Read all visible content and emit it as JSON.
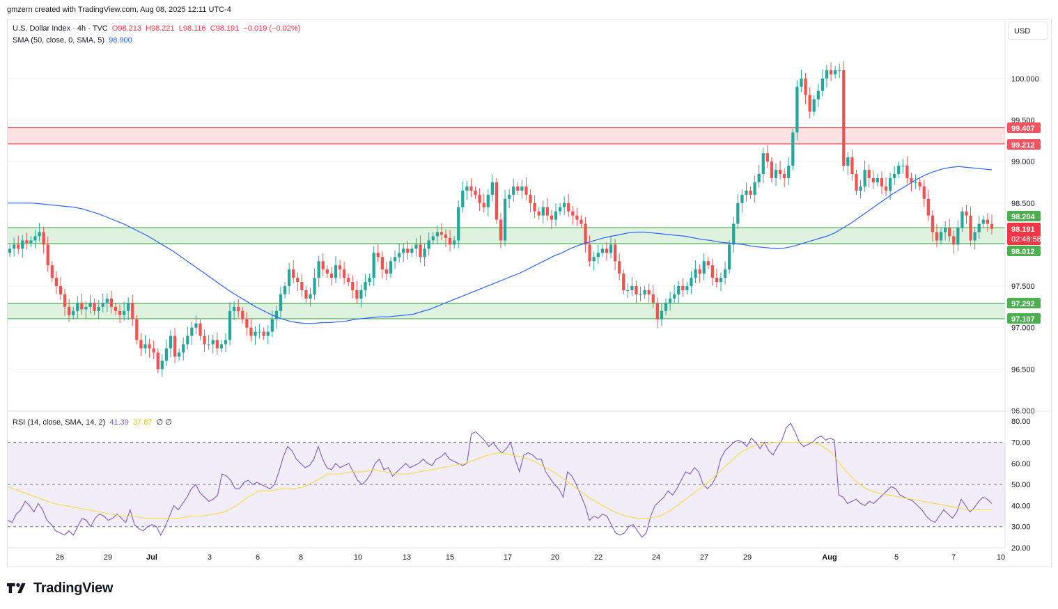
{
  "header": {
    "caption": "gmzern created with TradingView.com, Aug 08, 2025 12:11 UTC-4"
  },
  "legend": {
    "symbol": "U.S. Dollar Index · 4h · TVC",
    "open": "O98.213",
    "high": "H98.221",
    "low": "L98.116",
    "close": "C98.191",
    "change": "−0.019 (−0.02%)",
    "sma_label": "SMA (50, close, 0, SMA, 5)",
    "sma_value": "98.900",
    "rsi_label": "RSI (14, close, SMA, 14, 2)",
    "rsi_value": "41.39",
    "rsi_ma_value": "37.87",
    "rsi_extra": "∅ ∅"
  },
  "currency_button": "USD",
  "footer": {
    "brand": "TradingView"
  },
  "colors": {
    "up": "#26a69a",
    "down": "#ef5350",
    "sma": "#2962ff",
    "rsi": "#7e57c2",
    "rsi_ma": "#f5d949",
    "resistance": "#f23645",
    "support": "#4caf50"
  },
  "chart_data": [
    {
      "type": "candlestick",
      "title": "U.S. Dollar Index · 4h · TVC",
      "ylim": [
        96.0,
        100.4
      ],
      "y_ticks": [
        "100.000",
        "99.500",
        "99.000",
        "98.500",
        "97.500",
        "97.000",
        "96.500",
        "96.000"
      ],
      "x_ticks": [
        "26",
        "29",
        "Jul",
        "3",
        "6",
        "8",
        "10",
        "13",
        "15",
        "17",
        "20",
        "22",
        "24",
        "27",
        "29",
        "Aug",
        "5",
        "7",
        "10"
      ],
      "price_tags": [
        {
          "label": "99.407",
          "kind": "resistance"
        },
        {
          "label": "99.212",
          "kind": "resistance"
        },
        {
          "label": "98.204",
          "kind": "support"
        },
        {
          "label": "98.191",
          "kind": "last"
        },
        {
          "label": "02:48:58",
          "kind": "countdown"
        },
        {
          "label": "98.012",
          "kind": "support"
        },
        {
          "label": "97.292",
          "kind": "support"
        },
        {
          "label": "97.107",
          "kind": "support"
        }
      ],
      "zones": [
        {
          "from": 99.212,
          "to": 99.407,
          "kind": "resistance"
        },
        {
          "from": 98.012,
          "to": 98.204,
          "kind": "support"
        },
        {
          "from": 97.107,
          "to": 97.292,
          "kind": "support"
        }
      ],
      "close": [
        97.95,
        98.0,
        97.95,
        98.05,
        98.02,
        98.05,
        98.1,
        98.15,
        98.0,
        97.75,
        97.6,
        97.5,
        97.4,
        97.25,
        97.15,
        97.2,
        97.3,
        97.22,
        97.25,
        97.3,
        97.2,
        97.25,
        97.3,
        97.35,
        97.25,
        97.2,
        97.15,
        97.2,
        97.3,
        97.1,
        96.85,
        96.75,
        96.8,
        96.75,
        96.7,
        96.5,
        96.6,
        96.75,
        96.9,
        96.65,
        96.7,
        96.8,
        96.9,
        97.0,
        97.05,
        96.9,
        96.8,
        96.8,
        96.85,
        96.75,
        96.8,
        96.85,
        97.2,
        97.25,
        97.2,
        97.1,
        97.0,
        96.9,
        96.95,
        96.95,
        96.9,
        96.95,
        97.1,
        97.2,
        97.4,
        97.5,
        97.7,
        97.6,
        97.55,
        97.45,
        97.35,
        97.4,
        97.6,
        97.8,
        97.7,
        97.65,
        97.6,
        97.75,
        97.7,
        97.6,
        97.55,
        97.45,
        97.35,
        97.45,
        97.55,
        97.6,
        97.9,
        97.85,
        97.7,
        97.65,
        97.8,
        97.85,
        97.9,
        97.95,
        97.9,
        97.95,
        98.0,
        97.85,
        97.95,
        98.05,
        98.1,
        98.15,
        98.12,
        98.08,
        98.0,
        98.05,
        98.45,
        98.65,
        98.7,
        98.65,
        98.6,
        98.5,
        98.45,
        98.6,
        98.75,
        98.3,
        98.05,
        98.55,
        98.6,
        98.7,
        98.65,
        98.7,
        98.6,
        98.5,
        98.4,
        98.35,
        98.45,
        98.35,
        98.3,
        98.4,
        98.45,
        98.5,
        98.4,
        98.35,
        98.3,
        98.25,
        98.0,
        97.8,
        97.85,
        97.9,
        97.95,
        97.9,
        98.0,
        97.8,
        97.65,
        97.45,
        97.45,
        97.5,
        97.4,
        97.4,
        97.45,
        97.4,
        97.3,
        97.1,
        97.2,
        97.3,
        97.35,
        97.4,
        97.5,
        97.45,
        97.5,
        97.6,
        97.7,
        97.65,
        97.8,
        97.75,
        97.6,
        97.55,
        97.6,
        97.7,
        98.0,
        98.25,
        98.5,
        98.6,
        98.65,
        98.6,
        98.75,
        98.85,
        99.1,
        99.0,
        98.8,
        98.9,
        98.85,
        98.8,
        98.95,
        99.35,
        99.9,
        100.0,
        99.8,
        99.6,
        99.75,
        99.85,
        100.0,
        100.1,
        100.05,
        100.1,
        100.1,
        98.95,
        99.05,
        98.85,
        98.65,
        98.7,
        98.9,
        98.8,
        98.75,
        98.8,
        98.7,
        98.65,
        98.8,
        98.85,
        98.95,
        98.95,
        98.8,
        98.75,
        98.75,
        98.7,
        98.55,
        98.35,
        98.15,
        98.05,
        98.15,
        98.2,
        98.1,
        98.0,
        98.2,
        98.4,
        98.35,
        98.05,
        98.15,
        98.25,
        98.3,
        98.25,
        98.19
      ],
      "sma": [
        98.5,
        98.5,
        98.5,
        98.5,
        98.49,
        98.48,
        98.47,
        98.46,
        98.45,
        98.43,
        98.4,
        98.37,
        98.33,
        98.29,
        98.25,
        98.2,
        98.15,
        98.1,
        98.04,
        97.98,
        97.92,
        97.85,
        97.78,
        97.71,
        97.64,
        97.57,
        97.5,
        97.43,
        97.37,
        97.31,
        97.25,
        97.2,
        97.15,
        97.11,
        97.08,
        97.06,
        97.05,
        97.05,
        97.06,
        97.06,
        97.07,
        97.08,
        97.1,
        97.11,
        97.12,
        97.13,
        97.13,
        97.14,
        97.15,
        97.16,
        97.19,
        97.22,
        97.26,
        97.3,
        97.34,
        97.38,
        97.42,
        97.46,
        97.5,
        97.54,
        97.58,
        97.62,
        97.66,
        97.71,
        97.76,
        97.81,
        97.86,
        97.9,
        97.95,
        97.99,
        98.02,
        98.05,
        98.08,
        98.1,
        98.12,
        98.14,
        98.15,
        98.15,
        98.14,
        98.13,
        98.12,
        98.11,
        98.1,
        98.08,
        98.06,
        98.05,
        98.03,
        98.02,
        98.01,
        98.0,
        97.98,
        97.97,
        97.96,
        97.95,
        97.96,
        97.98,
        98.01,
        98.04,
        98.07,
        98.1,
        98.14,
        98.2,
        98.26,
        98.33,
        98.4,
        98.47,
        98.54,
        98.61,
        98.67,
        98.73,
        98.79,
        98.84,
        98.88,
        98.91,
        98.93,
        98.94,
        98.93,
        98.92,
        98.91,
        98.9
      ]
    },
    {
      "type": "line",
      "title": "RSI (14, close, SMA, 14, 2)",
      "ylim": [
        20,
        80
      ],
      "y_ticks": [
        "80.00",
        "70.00",
        "60.00",
        "50.00",
        "40.00",
        "30.00",
        "20.00"
      ],
      "bands": [
        30,
        50,
        70
      ],
      "series": [
        {
          "name": "RSI",
          "values": [
            33,
            32,
            36,
            38,
            42,
            40,
            37,
            41,
            38,
            33,
            31,
            28,
            27,
            26,
            28,
            26,
            30,
            34,
            33,
            30,
            34,
            36,
            35,
            33,
            34,
            36,
            34,
            32,
            38,
            31,
            29,
            28,
            30,
            31,
            30,
            26,
            30,
            35,
            40,
            38,
            41,
            44,
            48,
            50,
            46,
            44,
            42,
            43,
            45,
            55,
            54,
            52,
            48,
            48,
            51,
            52,
            50,
            51,
            50,
            49,
            48,
            50,
            56,
            63,
            68,
            66,
            62,
            60,
            58,
            59,
            62,
            68,
            62,
            58,
            57,
            60,
            58,
            59,
            60,
            56,
            52,
            50,
            52,
            55,
            60,
            62,
            57,
            58,
            54,
            56,
            58,
            60,
            58,
            59,
            60,
            62,
            60,
            59,
            62,
            63,
            65,
            62,
            61,
            60,
            59,
            60,
            74,
            75,
            73,
            71,
            68,
            70,
            67,
            65,
            67,
            70,
            62,
            56,
            64,
            65,
            64,
            62,
            62,
            56,
            53,
            50,
            48,
            44,
            56,
            54,
            50,
            45,
            40,
            33,
            35,
            34,
            36,
            35,
            31,
            27,
            26,
            27,
            30,
            31,
            28,
            25,
            27,
            35,
            40,
            42,
            44,
            47,
            45,
            48,
            52,
            56,
            55,
            58,
            56,
            50,
            48,
            50,
            54,
            62,
            66,
            68,
            70,
            71,
            70,
            68,
            72,
            70,
            67,
            70,
            66,
            64,
            68,
            71,
            77,
            79,
            75,
            70,
            68,
            69,
            70,
            72,
            73,
            71,
            72,
            71,
            45,
            44,
            41,
            42,
            43,
            41,
            40,
            42,
            41,
            43,
            45,
            47,
            49,
            48,
            45,
            44,
            43,
            42,
            40,
            38,
            35,
            33,
            32,
            35,
            38,
            36,
            34,
            37,
            43,
            40,
            37,
            39,
            42,
            44,
            43,
            41
          ],
          "color": "#7e57c2"
        },
        {
          "name": "MA",
          "values": [
            49,
            47,
            45,
            43,
            41,
            40,
            39,
            38,
            37,
            36,
            35,
            35,
            34,
            34,
            34,
            34,
            35,
            35,
            36,
            37,
            40,
            44,
            47,
            47,
            48,
            48,
            49,
            52,
            55,
            55,
            56,
            56,
            57,
            56,
            55,
            55,
            56,
            57,
            58,
            59,
            60,
            62,
            64,
            65,
            64,
            63,
            61,
            58,
            55,
            51,
            47,
            43,
            40,
            37,
            35,
            34,
            34,
            35,
            38,
            42,
            46,
            50,
            55,
            60,
            65,
            68,
            69,
            70,
            70,
            70,
            70,
            69,
            65,
            58,
            52,
            48,
            46,
            45,
            44,
            43,
            42,
            41,
            40,
            39,
            38,
            38,
            38
          ],
          "color": "#f5d949"
        }
      ]
    }
  ]
}
